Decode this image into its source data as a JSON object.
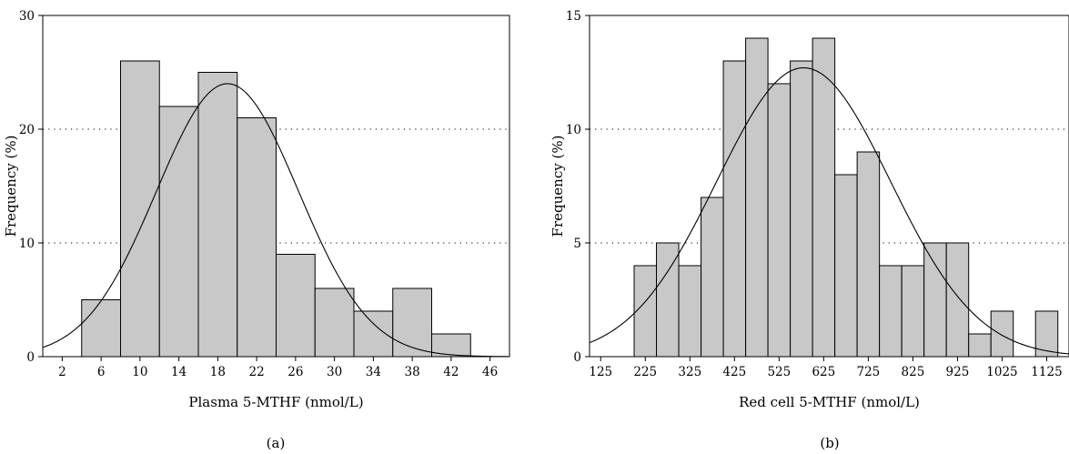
{
  "chart_data": [
    {
      "type": "bar",
      "panel_label": "(a)",
      "xlabel": "Plasma 5-MTHF (nmol/L)",
      "ylabel": "Frequency (%)",
      "ylim": [
        0,
        30
      ],
      "yticks": [
        0,
        10,
        20,
        30
      ],
      "grid": "horizontal dotted at 10 and 20",
      "xlim": [
        0,
        48
      ],
      "xticks": [
        2,
        6,
        10,
        14,
        18,
        22,
        26,
        30,
        34,
        38,
        42,
        46
      ],
      "bin_width": 4,
      "bins": [
        {
          "center": 6,
          "value": 5
        },
        {
          "center": 10,
          "value": 26
        },
        {
          "center": 14,
          "value": 22
        },
        {
          "center": 18,
          "value": 25
        },
        {
          "center": 22,
          "value": 21
        },
        {
          "center": 26,
          "value": 9
        },
        {
          "center": 30,
          "value": 6
        },
        {
          "center": 34,
          "value": 4
        },
        {
          "center": 38,
          "value": 6
        },
        {
          "center": 42,
          "value": 2
        }
      ],
      "normal_curve": {
        "mean": 19,
        "sd": 7.3,
        "peak": 24
      }
    },
    {
      "type": "bar",
      "panel_label": "(b)",
      "xlabel": "Red cell 5-MTHF (nmol/L)",
      "ylabel": "Frequency (%)",
      "ylim": [
        0,
        15
      ],
      "yticks": [
        0,
        5,
        10,
        15
      ],
      "grid": "horizontal dotted at 5 and 10",
      "xlim": [
        100,
        1175
      ],
      "xticks": [
        125,
        225,
        325,
        425,
        525,
        625,
        725,
        825,
        925,
        1025,
        1125
      ],
      "bin_width": 50,
      "bins": [
        {
          "center": 225,
          "value": 4
        },
        {
          "center": 275,
          "value": 5
        },
        {
          "center": 325,
          "value": 4
        },
        {
          "center": 375,
          "value": 7
        },
        {
          "center": 425,
          "value": 13
        },
        {
          "center": 475,
          "value": 14
        },
        {
          "center": 525,
          "value": 12
        },
        {
          "center": 575,
          "value": 13
        },
        {
          "center": 625,
          "value": 14
        },
        {
          "center": 675,
          "value": 8
        },
        {
          "center": 725,
          "value": 9
        },
        {
          "center": 775,
          "value": 4
        },
        {
          "center": 825,
          "value": 4
        },
        {
          "center": 875,
          "value": 5
        },
        {
          "center": 925,
          "value": 5
        },
        {
          "center": 975,
          "value": 1
        },
        {
          "center": 1025,
          "value": 2
        },
        {
          "center": 1125,
          "value": 2
        }
      ],
      "normal_curve": {
        "mean": 580,
        "sd": 195,
        "peak": 12.7
      }
    }
  ]
}
